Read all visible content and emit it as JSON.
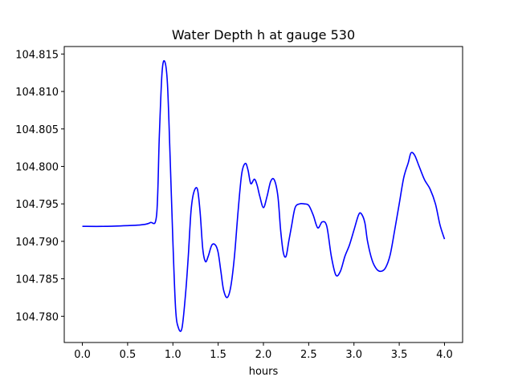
{
  "chart_data": {
    "type": "line",
    "title": "Water Depth h at gauge 530",
    "xlabel": "hours",
    "ylabel": "",
    "xlim": [
      -0.2,
      4.2
    ],
    "ylim": [
      104.7765,
      104.816
    ],
    "xticks": [
      0.0,
      0.5,
      1.0,
      1.5,
      2.0,
      2.5,
      3.0,
      3.5,
      4.0
    ],
    "xtick_labels": [
      "0.0",
      "0.5",
      "1.0",
      "1.5",
      "2.0",
      "2.5",
      "3.0",
      "3.5",
      "4.0"
    ],
    "yticks": [
      104.78,
      104.785,
      104.79,
      104.795,
      104.8,
      104.805,
      104.81,
      104.815
    ],
    "ytick_labels": [
      "104.780",
      "104.785",
      "104.790",
      "104.795",
      "104.800",
      "104.805",
      "104.810",
      "104.815"
    ],
    "grid": false,
    "series": [
      {
        "color": "#0000ff",
        "x": [
          0.0,
          0.25,
          0.5,
          0.65,
          0.75,
          0.82,
          0.85,
          0.88,
          0.91,
          0.94,
          0.97,
          1.0,
          1.03,
          1.06,
          1.1,
          1.14,
          1.17,
          1.2,
          1.23,
          1.27,
          1.3,
          1.33,
          1.36,
          1.39,
          1.43,
          1.47,
          1.5,
          1.53,
          1.56,
          1.6,
          1.64,
          1.68,
          1.72,
          1.76,
          1.8,
          1.83,
          1.86,
          1.9,
          1.93,
          1.96,
          2.0,
          2.04,
          2.08,
          2.12,
          2.16,
          2.19,
          2.22,
          2.25,
          2.28,
          2.31,
          2.35,
          2.4,
          2.45,
          2.5,
          2.55,
          2.6,
          2.65,
          2.7,
          2.75,
          2.8,
          2.85,
          2.9,
          2.95,
          3.0,
          3.05,
          3.08,
          3.12,
          3.15,
          3.2,
          3.25,
          3.3,
          3.35,
          3.4,
          3.45,
          3.5,
          3.55,
          3.6,
          3.63,
          3.67,
          3.72,
          3.78,
          3.84,
          3.9,
          3.95,
          4.0
        ],
        "y": [
          104.792,
          104.792,
          104.7921,
          104.7922,
          104.7925,
          104.7935,
          104.804,
          104.8125,
          104.814,
          104.811,
          104.801,
          104.79,
          104.781,
          104.7785,
          104.7784,
          104.783,
          104.788,
          104.794,
          104.7965,
          104.797,
          104.794,
          104.789,
          104.7873,
          104.788,
          104.7895,
          104.7895,
          104.7885,
          104.786,
          104.7835,
          104.7825,
          104.784,
          104.788,
          104.794,
          104.799,
          104.8004,
          104.7995,
          104.7977,
          104.7983,
          104.7975,
          104.796,
          104.7945,
          104.796,
          104.798,
          104.7982,
          104.796,
          104.7915,
          104.7885,
          104.788,
          104.79,
          104.792,
          104.7945,
          104.795,
          104.795,
          104.7948,
          104.7935,
          104.7918,
          104.7926,
          104.792,
          104.788,
          104.7855,
          104.786,
          104.788,
          104.7895,
          104.7915,
          104.7935,
          104.7937,
          104.7925,
          104.79,
          104.7875,
          104.7863,
          104.786,
          104.7865,
          104.7882,
          104.7915,
          104.795,
          104.7985,
          104.8005,
          104.8018,
          104.8015,
          104.8,
          104.7982,
          104.797,
          104.795,
          104.7922,
          104.7903
        ]
      }
    ]
  }
}
